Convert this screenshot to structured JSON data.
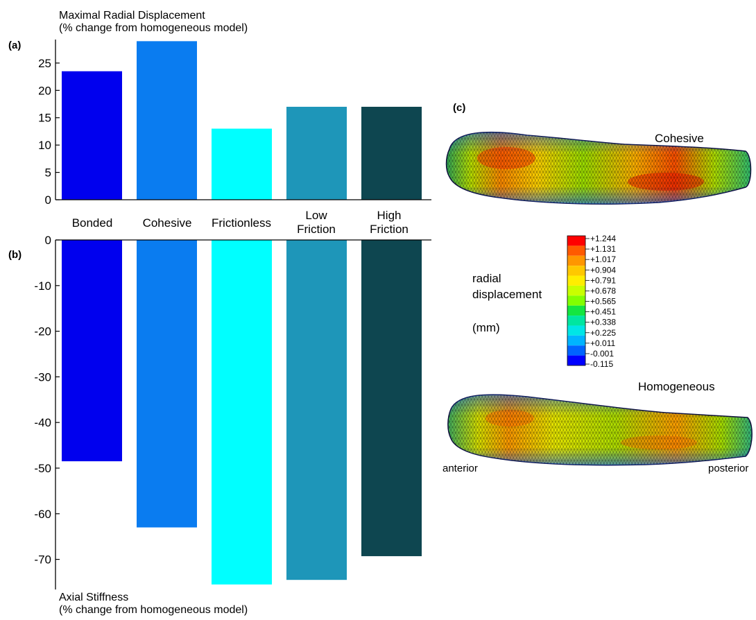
{
  "panels": {
    "a": "(a)",
    "b": "(b)",
    "c": "(c)"
  },
  "chart_data": [
    {
      "type": "bar",
      "panel": "(a)",
      "title": "",
      "ylabel_lines": [
        "Maximal Radial Displacement",
        "(% change from homogeneous model)"
      ],
      "categories": [
        [
          "Bonded"
        ],
        [
          "Cohesive"
        ],
        [
          "Frictionless"
        ],
        [
          "Low",
          "Friction"
        ],
        [
          "High",
          "Friction"
        ]
      ],
      "values": [
        23.5,
        29,
        13,
        17,
        17
      ],
      "colors": [
        "#0000ee",
        "#0a7cf0",
        "#00ffff",
        "#1e96b9",
        "#0e4650"
      ],
      "yticks": [
        0,
        5,
        10,
        15,
        20,
        25
      ],
      "ylim": [
        0,
        29.3
      ]
    },
    {
      "type": "bar",
      "panel": "(b)",
      "title": "",
      "ylabel_lines": [
        "Axial Stiffness",
        "(% change from homogeneous model)"
      ],
      "categories": [
        [
          "Bonded"
        ],
        [
          "Cohesive"
        ],
        [
          "Frictionless"
        ],
        [
          "Low",
          "Friction"
        ],
        [
          "High",
          "Friction"
        ]
      ],
      "values": [
        -48.5,
        -63,
        -75.5,
        -74.5,
        -69.3
      ],
      "colors": [
        "#0000ee",
        "#0a7cf0",
        "#00ffff",
        "#1e96b9",
        "#0e4650"
      ],
      "yticks": [
        0,
        -10,
        -20,
        -30,
        -40,
        -50,
        -60,
        -70
      ],
      "ylim": [
        -76.6,
        0
      ]
    }
  ],
  "contour_panel": {
    "models": {
      "top": "Cohesive",
      "bottom": "Homogeneous"
    },
    "legend": {
      "label_lines": [
        "radial",
        "displacement"
      ],
      "unit": "(mm)",
      "levels": [
        "+1.244",
        "+1.131",
        "+1.017",
        "+0.904",
        "+0.791",
        "+0.678",
        "+0.565",
        "+0.451",
        "+0.338",
        "+0.225",
        "+0.011",
        "-0.001",
        "-0.115"
      ],
      "colors": [
        "#ff0000",
        "#ff5a00",
        "#ff9600",
        "#ffc800",
        "#ffee00",
        "#c8ff00",
        "#82ff00",
        "#14e640",
        "#00e6a0",
        "#00e6e6",
        "#00b4ff",
        "#0064ff",
        "#0000ff"
      ]
    },
    "orientation": {
      "left": "anterior",
      "right": "posterior"
    }
  }
}
